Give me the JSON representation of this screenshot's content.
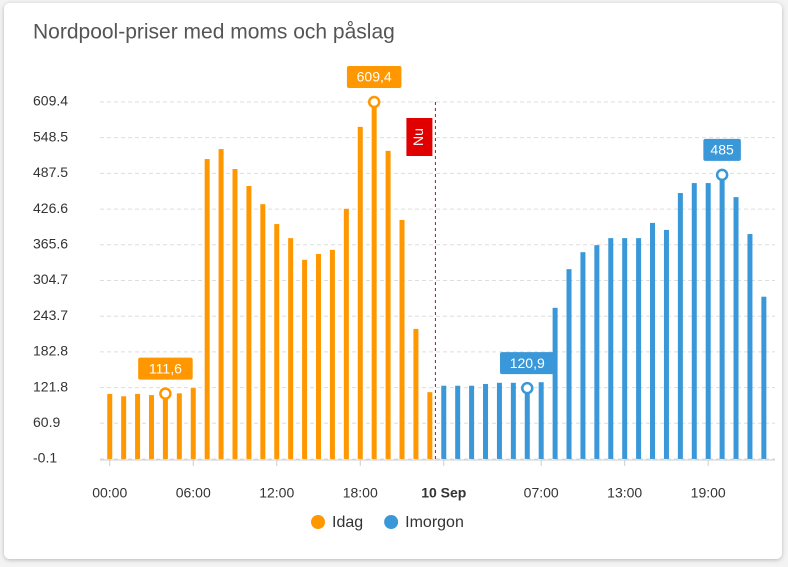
{
  "chart_data": {
    "type": "bar",
    "title": "Nordpool-priser med moms och påslag",
    "series": [
      {
        "name": "Idag",
        "color": "#ff9800",
        "x": [
          0,
          1,
          2,
          3,
          4,
          5,
          6,
          7,
          8,
          9,
          10,
          11,
          12,
          13,
          14,
          15,
          16,
          17,
          18,
          19,
          20,
          21,
          22,
          23
        ],
        "values": [
          111,
          107,
          111,
          109,
          111.6,
          112,
          121,
          512,
          529,
          495,
          466,
          435,
          401,
          377,
          340,
          350,
          357,
          427,
          567,
          609.4,
          526,
          408,
          222,
          114
        ],
        "value_labels": [
          null,
          null,
          null,
          null,
          "111,6",
          null,
          null,
          null,
          null,
          null,
          null,
          null,
          null,
          null,
          null,
          null,
          null,
          null,
          null,
          "609,4",
          null,
          null,
          null,
          null
        ]
      },
      {
        "name": "Imorgon",
        "color": "#3a97d8",
        "x": [
          24,
          25,
          26,
          27,
          28,
          29,
          30,
          31,
          32,
          33,
          34,
          35,
          36,
          37,
          38,
          39,
          40,
          41,
          42,
          43,
          44,
          45,
          46,
          47
        ],
        "values": [
          125,
          125,
          125,
          128,
          130,
          130,
          120.9,
          131,
          258,
          324,
          353,
          365,
          377,
          377,
          377,
          403,
          391,
          454,
          471,
          471,
          485,
          447,
          384,
          277
        ],
        "value_labels": [
          null,
          null,
          null,
          null,
          null,
          null,
          "120,9",
          null,
          null,
          null,
          null,
          null,
          null,
          null,
          null,
          null,
          null,
          null,
          null,
          null,
          "485",
          null,
          null,
          null
        ]
      }
    ],
    "now_marker": {
      "x": 23.4,
      "label": "Nu",
      "color": "#e00000"
    },
    "xlim": [
      -0.7,
      47.8
    ],
    "xticks": [
      {
        "value": 0,
        "label": "00:00"
      },
      {
        "value": 6,
        "label": "06:00"
      },
      {
        "value": 12,
        "label": "12:00"
      },
      {
        "value": 18,
        "label": "18:00"
      },
      {
        "value": 24,
        "label": "10 Sep"
      },
      {
        "value": 31,
        "label": "07:00"
      },
      {
        "value": 37,
        "label": "13:00"
      },
      {
        "value": 43,
        "label": "19:00"
      }
    ],
    "ylim": [
      -0.1,
      609.4
    ],
    "yticks": [
      -0.1,
      60.9,
      121.8,
      182.8,
      243.7,
      304.7,
      365.6,
      426.6,
      487.5,
      548.5,
      609.4
    ],
    "grid": true,
    "legend": "bottom"
  }
}
